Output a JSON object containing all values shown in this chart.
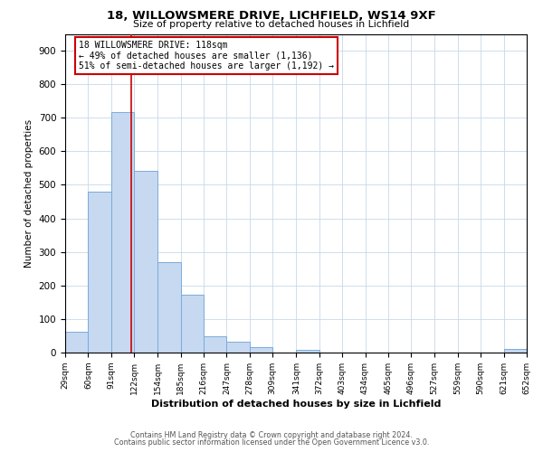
{
  "title": "18, WILLOWSMERE DRIVE, LICHFIELD, WS14 9XF",
  "subtitle": "Size of property relative to detached houses in Lichfield",
  "xlabel": "Distribution of detached houses by size in Lichfield",
  "ylabel": "Number of detached properties",
  "bar_color": "#c6d9f0",
  "bar_edge_color": "#7aaadd",
  "background_color": "#ffffff",
  "grid_color": "#c8d8e8",
  "vline_x": 118,
  "vline_color": "#cc0000",
  "annotation_box_edge_color": "#cc0000",
  "annotation_lines": [
    "18 WILLOWSMERE DRIVE: 118sqm",
    "← 49% of detached houses are smaller (1,136)",
    "51% of semi-detached houses are larger (1,192) →"
  ],
  "bin_edges": [
    29,
    60,
    91,
    122,
    154,
    185,
    216,
    247,
    278,
    309,
    341,
    372,
    403,
    434,
    465,
    496,
    527,
    559,
    590,
    621,
    652
  ],
  "bin_counts": [
    62,
    480,
    718,
    543,
    270,
    172,
    48,
    33,
    15,
    0,
    8,
    0,
    0,
    0,
    0,
    0,
    0,
    0,
    0,
    12
  ],
  "ylim": [
    0,
    950
  ],
  "yticks": [
    0,
    100,
    200,
    300,
    400,
    500,
    600,
    700,
    800,
    900
  ],
  "footnote1": "Contains HM Land Registry data © Crown copyright and database right 2024.",
  "footnote2": "Contains public sector information licensed under the Open Government Licence v3.0."
}
